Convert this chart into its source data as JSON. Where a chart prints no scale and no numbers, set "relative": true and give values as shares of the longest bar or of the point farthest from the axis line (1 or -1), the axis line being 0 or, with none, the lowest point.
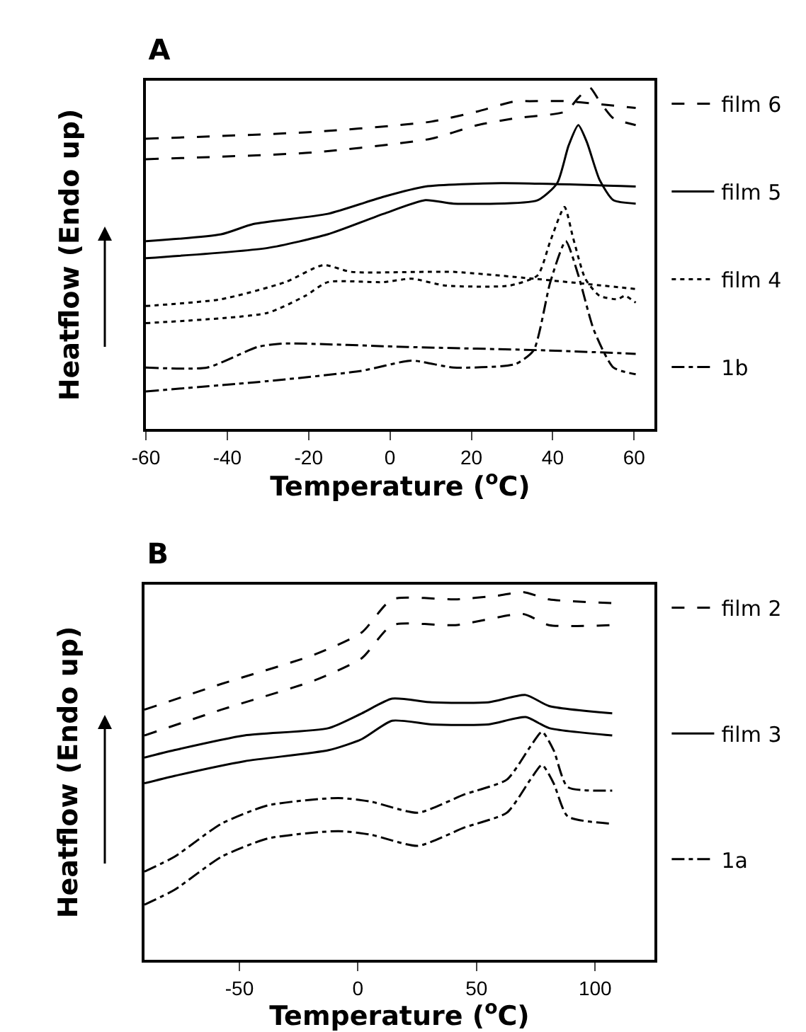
{
  "chart_data": [
    {
      "type": "line",
      "title": "A",
      "xlabel": "Temperature ($^{o}$C)",
      "ylabel": "Heatflow (Endo up)",
      "relative": true,
      "legend": "right",
      "xlim": [
        -60,
        65
      ],
      "xticks": [
        -60,
        -40,
        -20,
        0,
        20,
        40,
        60
      ],
      "series": [
        {
          "name": "film 6",
          "color": "#000000",
          "line_style": "dashed",
          "x": [
            -60,
            -18.8,
            10.1,
            21.5,
            30.8,
            34.3,
            43.2,
            60.4
          ],
          "values": [
            0.85,
            0.87,
            0.9,
            0.93,
            0.96,
            0.96,
            0.96,
            0.94
          ]
        },
        {
          "color": "#000000",
          "line_style": "dashed",
          "x": [
            -60,
            -18.8,
            10.1,
            21.5,
            30.8,
            43.2,
            46.3,
            49.1,
            51.5,
            54.9,
            60.4
          ],
          "values": [
            0.79,
            0.81,
            0.85,
            0.89,
            0.91,
            0.93,
            0.97,
            1.0,
            0.96,
            0.91,
            0.89
          ]
        },
        {
          "name": "film 5",
          "color": "#000000",
          "line_style": "solid",
          "x": [
            -60,
            -41.5,
            -33.6,
            -15.3,
            -1.6,
            8.7,
            27.3,
            60.4
          ],
          "values": [
            0.55,
            0.57,
            0.6,
            0.63,
            0.68,
            0.71,
            0.72,
            0.71
          ]
        },
        {
          "color": "#000000",
          "line_style": "solid",
          "x": [
            -60,
            -30.1,
            -15.3,
            -1.6,
            8.7,
            15.6,
            36.3,
            41.1,
            43.9,
            46.3,
            48.4,
            51.5,
            54.9,
            60.4
          ],
          "values": [
            0.5,
            0.53,
            0.57,
            0.63,
            0.67,
            0.66,
            0.67,
            0.72,
            0.83,
            0.89,
            0.84,
            0.73,
            0.67,
            0.66
          ]
        },
        {
          "name": "film 4",
          "color": "#000000",
          "line_style": "dotted",
          "x": [
            -60,
            -41.5,
            -25.7,
            -16.4,
            -9.5,
            15.6,
            35.3,
            60.4
          ],
          "values": [
            0.36,
            0.38,
            0.43,
            0.48,
            0.46,
            0.46,
            0.44,
            0.41
          ]
        },
        {
          "color": "#000000",
          "line_style": "dotted",
          "x": [
            -60,
            -30.1,
            -20.8,
            -15.3,
            -1.6,
            5.3,
            13.6,
            29.4,
            36.3,
            39.4,
            42.9,
            45.0,
            48.0,
            51.5,
            56.0,
            57.7,
            60.4
          ],
          "values": [
            0.31,
            0.34,
            0.39,
            0.43,
            0.43,
            0.44,
            0.42,
            0.42,
            0.45,
            0.55,
            0.65,
            0.56,
            0.44,
            0.39,
            0.38,
            0.39,
            0.37
          ]
        },
        {
          "name": "1b",
          "color": "#000000",
          "line_style": "dashdot",
          "x": [
            -60,
            -44.9,
            -32.6,
            -26.7,
            4.3,
            38.7,
            60.4
          ],
          "values": [
            0.18,
            0.18,
            0.24,
            0.25,
            0.24,
            0.23,
            0.22
          ]
        },
        {
          "color": "#000000",
          "line_style": "dashdot",
          "x": [
            -60,
            -30.1,
            -7.1,
            5.3,
            15.6,
            30.8,
            35.3,
            39.4,
            43.2,
            46.3,
            50.1,
            54.9,
            60.4
          ],
          "values": [
            0.11,
            0.14,
            0.17,
            0.2,
            0.18,
            0.19,
            0.23,
            0.43,
            0.55,
            0.45,
            0.29,
            0.18,
            0.16
          ]
        }
      ]
    },
    {
      "type": "line",
      "title": "B",
      "xlabel": "Temperature ($^{o}$C)",
      "ylabel": "Heatflow (Endo up)",
      "relative": true,
      "legend": "right",
      "xlim": [
        -90,
        125
      ],
      "xticks": [
        -50,
        0,
        50,
        100
      ],
      "series": [
        {
          "name": "film 2",
          "color": "#000000",
          "line_style": "dashed",
          "x": [
            -90,
            -57.6,
            -18.2,
            1.6,
            14.4,
            41.1,
            58.8,
            69.7,
            80.6,
            107.2
          ],
          "values": [
            0.68,
            0.75,
            0.83,
            0.89,
            0.98,
            0.98,
            0.99,
            1.0,
            0.98,
            0.97
          ]
        },
        {
          "color": "#000000",
          "line_style": "dashed",
          "x": [
            -90,
            -57.6,
            -18.2,
            1.6,
            14.4,
            41.1,
            69.7,
            80.6,
            107.2
          ],
          "values": [
            0.61,
            0.68,
            0.76,
            0.82,
            0.91,
            0.91,
            0.94,
            0.91,
            0.91
          ]
        },
        {
          "name": "film 3",
          "color": "#000000",
          "line_style": "solid",
          "x": [
            -90,
            -77.4,
            -47.8,
            -12.3,
            1.6,
            14.4,
            31.2,
            54.9,
            70.7,
            80.6,
            107.2
          ],
          "values": [
            0.55,
            0.57,
            0.61,
            0.63,
            0.67,
            0.71,
            0.7,
            0.7,
            0.72,
            0.69,
            0.67
          ]
        },
        {
          "color": "#000000",
          "line_style": "solid",
          "x": [
            -90,
            -77.4,
            -47.8,
            -12.3,
            1.6,
            14.4,
            31.2,
            54.9,
            70.7,
            80.6,
            107.2
          ],
          "values": [
            0.48,
            0.5,
            0.54,
            0.57,
            0.6,
            0.65,
            0.64,
            0.64,
            0.66,
            0.63,
            0.61
          ]
        },
        {
          "name": "1a",
          "color": "#000000",
          "line_style": "dashdot",
          "x": [
            -90,
            -77.4,
            -57.6,
            -37.9,
            -8.3,
            5.5,
            25.3,
            45.0,
            62.8,
            72.7,
            77.6,
            82.5,
            88.4,
            107.2
          ],
          "values": [
            0.24,
            0.28,
            0.37,
            0.42,
            0.44,
            0.43,
            0.4,
            0.45,
            0.49,
            0.58,
            0.62,
            0.57,
            0.47,
            0.46
          ]
        },
        {
          "color": "#000000",
          "line_style": "dashdot",
          "x": [
            -90,
            -77.4,
            -57.6,
            -37.9,
            -8.3,
            5.5,
            25.3,
            45.0,
            62.8,
            72.7,
            77.6,
            82.5,
            88.4,
            107.2
          ],
          "values": [
            0.15,
            0.19,
            0.28,
            0.33,
            0.35,
            0.34,
            0.31,
            0.36,
            0.4,
            0.49,
            0.53,
            0.48,
            0.39,
            0.37
          ]
        }
      ]
    }
  ]
}
